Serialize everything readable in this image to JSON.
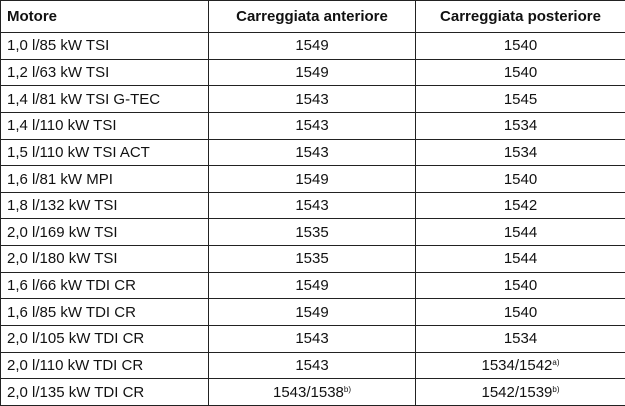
{
  "table": {
    "headers": [
      "Motore",
      "Carreggiata anteriore",
      "Carreggiata posteriore"
    ],
    "rows": [
      [
        "1,0 l/85 kW TSI",
        "1549",
        "1540"
      ],
      [
        "1,2 l/63 kW TSI",
        "1549",
        "1540"
      ],
      [
        "1,4 l/81 kW TSI G-TEC",
        "1543",
        "1545"
      ],
      [
        "1,4 l/110 kW TSI",
        "1543",
        "1534"
      ],
      [
        "1,5 l/110 kW TSI ACT",
        "1543",
        "1534"
      ],
      [
        "1,6 l/81 kW MPI",
        "1549",
        "1540"
      ],
      [
        "1,8 l/132 kW TSI",
        "1543",
        "1542"
      ],
      [
        "2,0 l/169 kW TSI",
        "1535",
        "1544"
      ],
      [
        "2,0 l/180 kW TSI",
        "1535",
        "1544"
      ],
      [
        "1,6 l/66 kW TDI CR",
        "1549",
        "1540"
      ],
      [
        "1,6 l/85 kW TDI CR",
        "1549",
        "1540"
      ],
      [
        "2,0 l/105 kW TDI CR",
        "1543",
        "1534"
      ],
      [
        "2,0 l/110 kW TDI CR",
        "1543",
        {
          "text": "1534/1542",
          "note": "a)"
        }
      ],
      [
        "2,0 l/135 kW TDI CR",
        {
          "text": "1543/1538",
          "note": "b)"
        },
        {
          "text": "1542/1539",
          "note": "b)"
        }
      ]
    ]
  }
}
